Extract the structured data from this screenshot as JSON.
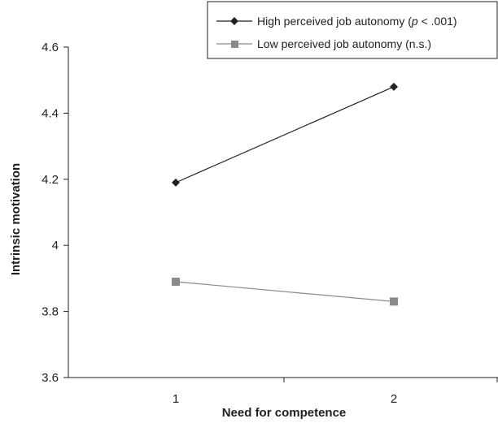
{
  "chart_data": {
    "type": "line",
    "title": "",
    "xlabel": "Need for competence",
    "ylabel": "Intrinsic motivation",
    "categories": [
      "1",
      "2"
    ],
    "ylim": [
      3.6,
      4.6
    ],
    "yticks": [
      "3.6",
      "3.8",
      "4",
      "4.2",
      "4.4",
      "4.6"
    ],
    "grid": false,
    "legend_position": "top-right",
    "series": [
      {
        "name": "High perceived job autonomy (p < .001)",
        "name_prefix": "High perceived job autonomy (",
        "name_italic": "p",
        "name_suffix": " < .001)",
        "marker": "diamond",
        "color": "#222222",
        "values": [
          4.19,
          4.48
        ]
      },
      {
        "name": "Low perceived job autonomy (n.s.)",
        "marker": "square",
        "color": "#8a8a8a",
        "values": [
          3.89,
          3.83
        ]
      }
    ]
  }
}
